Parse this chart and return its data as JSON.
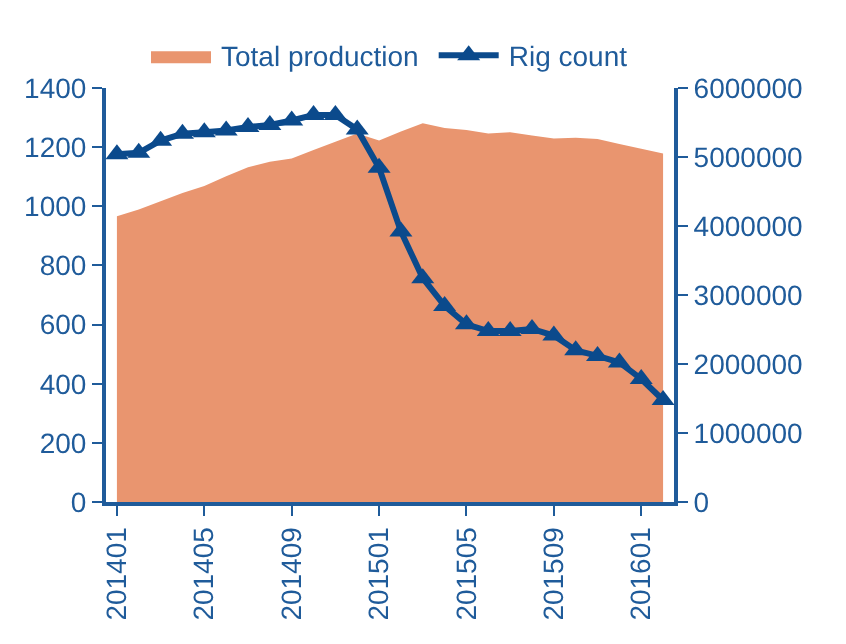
{
  "chart_data": {
    "type": "area",
    "categories": [
      "201401",
      null,
      null,
      null,
      "201405",
      null,
      null,
      null,
      "201409",
      null,
      null,
      null,
      "201501",
      null,
      null,
      null,
      "201505",
      null,
      null,
      null,
      "201509",
      null,
      null,
      null,
      "201601",
      null
    ],
    "series": [
      {
        "name": "Total production",
        "axis": "y2",
        "color": "#e9956f",
        "values": [
          4140000,
          4240000,
          4360000,
          4480000,
          4580000,
          4720000,
          4850000,
          4930000,
          4980000,
          5100000,
          5220000,
          5340000,
          5240000,
          5370000,
          5490000,
          5420000,
          5390000,
          5340000,
          5360000,
          5310000,
          5270000,
          5280000,
          5260000,
          5190000,
          5120000,
          5050000
        ]
      },
      {
        "name": "Rig count",
        "type": "line",
        "color": "#0b4a8c",
        "marker": "triangle",
        "values": [
          1176,
          1181,
          1222,
          1245,
          1250,
          1256,
          1268,
          1275,
          1290,
          1309,
          1309,
          1260,
          1130,
          915,
          757,
          663,
          601,
          578,
          578,
          585,
          563,
          513,
          494,
          472,
          416,
          345
        ]
      }
    ],
    "ylim": [
      0,
      1400
    ],
    "yticks": [
      0,
      200,
      400,
      600,
      800,
      1000,
      1200,
      1400
    ],
    "y2lim": [
      0,
      6000000
    ],
    "y2ticks": [
      0,
      1000000,
      2000000,
      3000000,
      4000000,
      5000000,
      6000000
    ],
    "legend": "top"
  }
}
